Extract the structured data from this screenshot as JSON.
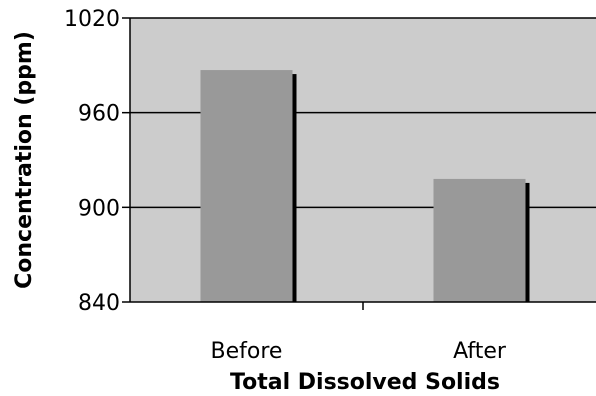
{
  "chart_data": {
    "type": "bar",
    "categories": [
      "Before",
      "After"
    ],
    "series": [
      {
        "values": [
          987,
          918
        ]
      }
    ],
    "title": "",
    "xlabel": "Total Dissolved Solids",
    "ylabel": "Concentration (ppm)",
    "ylim": [
      840,
      1020
    ],
    "yticks": [
      840,
      900,
      960,
      1020
    ],
    "grid": true,
    "legend": "none",
    "colors": {
      "plot_background": "#cccccc",
      "bar": "#999999",
      "bar_shadow": "#000000",
      "gridline": "#000000"
    }
  }
}
